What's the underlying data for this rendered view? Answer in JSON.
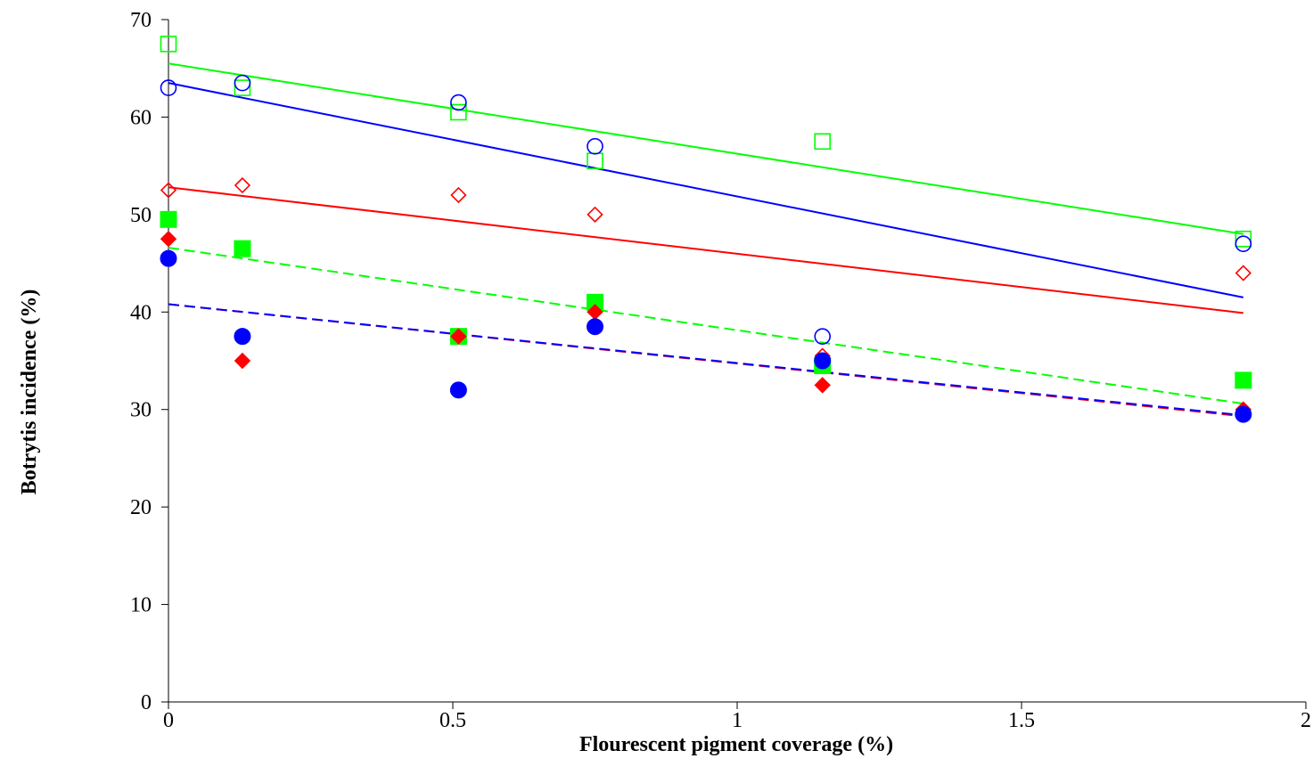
{
  "chart_data": {
    "type": "scatter",
    "title": "",
    "xlabel": "Flourescent pigment coverage (%)",
    "ylabel": "Botrytis incidence (%)",
    "xlim": [
      0,
      2
    ],
    "ylim": [
      0,
      70
    ],
    "xticks": [
      0,
      0.5,
      1,
      1.5,
      2
    ],
    "yticks": [
      0,
      10,
      20,
      30,
      40,
      50,
      60,
      70
    ],
    "xtick_labels": [
      "0",
      "0.5",
      "1",
      "1.5",
      "2"
    ],
    "ytick_labels": [
      "0",
      "10",
      "20",
      "30",
      "40",
      "50",
      "60",
      "70"
    ],
    "grid": false,
    "legend": "none",
    "series": [
      {
        "marker": "open-square",
        "color": "#00ff00",
        "x": [
          0,
          0.13,
          0.51,
          0.75,
          1.15,
          1.89
        ],
        "y": [
          67.5,
          63,
          60.5,
          55.5,
          57.5,
          47.5
        ],
        "trend": {
          "style": "solid",
          "y_start": 65.5,
          "y_end": 48
        }
      },
      {
        "marker": "open-circle",
        "color": "#0000ff",
        "x": [
          0,
          0.13,
          0.51,
          0.75,
          1.15,
          1.89
        ],
        "y": [
          63,
          63.5,
          61.5,
          57,
          37.5,
          47
        ],
        "trend": {
          "style": "solid",
          "y_start": 63.5,
          "y_end": 41.5
        }
      },
      {
        "marker": "open-diamond",
        "color": "#ff0000",
        "x": [
          0,
          0.13,
          0.51,
          0.75,
          1.15,
          1.89
        ],
        "y": [
          52.5,
          53,
          52,
          50,
          35.5,
          44
        ],
        "trend": {
          "style": "solid",
          "y_start": 52.8,
          "y_end": 39.9
        }
      },
      {
        "marker": "filled-square",
        "color": "#00ff00",
        "x": [
          0,
          0.13,
          0.51,
          0.75,
          1.15,
          1.89
        ],
        "y": [
          49.5,
          46.5,
          37.5,
          41,
          34.5,
          33
        ],
        "trend": {
          "style": "dashed",
          "y_start": 46.6,
          "y_end": 30.6
        }
      },
      {
        "marker": "filled-diamond",
        "color": "#ff0000",
        "x": [
          0,
          0.13,
          0.51,
          0.75,
          1.15,
          1.89
        ],
        "y": [
          47.5,
          35,
          37.5,
          40,
          32.5,
          30
        ],
        "trend": {
          "style": "dashed",
          "y_start": 40.8,
          "y_end": 29.3
        }
      },
      {
        "marker": "filled-circle",
        "color": "#0000ff",
        "x": [
          0,
          0.13,
          0.51,
          0.75,
          1.15,
          1.89
        ],
        "y": [
          45.5,
          37.5,
          32,
          38.5,
          35,
          29.5
        ],
        "trend": {
          "style": "dashed",
          "y_start": 40.8,
          "y_end": 29.4
        }
      }
    ]
  }
}
